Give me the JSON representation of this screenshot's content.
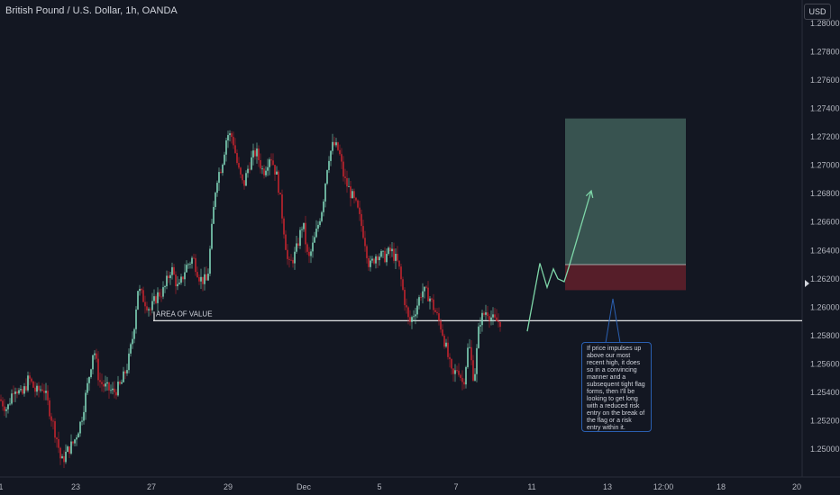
{
  "header": {
    "title": "British Pound / U.S. Dollar, 1h, OANDA",
    "currency_button": "USD"
  },
  "annotations": {
    "area_of_value": "AREA OF VALUE",
    "callout": "If price impulses up above our most recent high, it does so in a convincing manner and a subsequent tight flag forms, then I'll be looking to get long with a reduced risk entry on the break of the flag or a risk entry within it."
  },
  "colors": {
    "background": "#131722",
    "bull": "#7fd3b8",
    "bear": "#c0242e",
    "target_zone": "#3d5a55",
    "stop_zone": "#5a1f2a",
    "projection": "#7ed6a8",
    "line": "#ffffff"
  },
  "chart_data": {
    "type": "candlestick",
    "title": "British Pound / U.S. Dollar, 1h, OANDA",
    "ylim": [
      1.2485,
      1.2808
    ],
    "y_ticks": [
      "1.28000",
      "1.27800",
      "1.27600",
      "1.27400",
      "1.27200",
      "1.27000",
      "1.26800",
      "1.26600",
      "1.26400",
      "1.26200",
      "1.26000",
      "1.25800",
      "1.25600",
      "1.25400",
      "1.25200",
      "1.25000"
    ],
    "x_ticks": [
      "1",
      "23",
      "27",
      "29",
      "Dec",
      "5",
      "7",
      "11",
      "13",
      "12:00",
      "18",
      "20"
    ],
    "price_path": [
      [
        0,
        1.2535
      ],
      [
        8,
        1.2528
      ],
      [
        16,
        1.2545
      ],
      [
        24,
        1.2537
      ],
      [
        32,
        1.255
      ],
      [
        40,
        1.254
      ],
      [
        48,
        1.2544
      ],
      [
        56,
        1.2525
      ],
      [
        64,
        1.2505
      ],
      [
        68,
        1.249
      ],
      [
        74,
        1.2498
      ],
      [
        82,
        1.2505
      ],
      [
        90,
        1.252
      ],
      [
        98,
        1.2548
      ],
      [
        104,
        1.2572
      ],
      [
        110,
        1.2548
      ],
      [
        118,
        1.2543
      ],
      [
        126,
        1.254
      ],
      [
        134,
        1.2545
      ],
      [
        142,
        1.256
      ],
      [
        148,
        1.2582
      ],
      [
        153,
        1.2613
      ],
      [
        160,
        1.2605
      ],
      [
        167,
        1.2598
      ],
      [
        174,
        1.2608
      ],
      [
        182,
        1.2612
      ],
      [
        190,
        1.2628
      ],
      [
        198,
        1.2612
      ],
      [
        206,
        1.2628
      ],
      [
        214,
        1.2635
      ],
      [
        222,
        1.262
      ],
      [
        230,
        1.2618
      ],
      [
        236,
        1.2662
      ],
      [
        240,
        1.269
      ],
      [
        246,
        1.27
      ],
      [
        252,
        1.2722
      ],
      [
        258,
        1.272
      ],
      [
        264,
        1.2698
      ],
      [
        270,
        1.2685
      ],
      [
        276,
        1.27
      ],
      [
        284,
        1.271
      ],
      [
        292,
        1.2695
      ],
      [
        300,
        1.2708
      ],
      [
        308,
        1.269
      ],
      [
        314,
        1.266
      ],
      [
        320,
        1.2628
      ],
      [
        328,
        1.2638
      ],
      [
        336,
        1.266
      ],
      [
        342,
        1.2632
      ],
      [
        350,
        1.265
      ],
      [
        358,
        1.2672
      ],
      [
        364,
        1.2705
      ],
      [
        370,
        1.2715
      ],
      [
        376,
        1.271
      ],
      [
        382,
        1.269
      ],
      [
        388,
        1.2682
      ],
      [
        396,
        1.267
      ],
      [
        404,
        1.265
      ],
      [
        410,
        1.2628
      ],
      [
        418,
        1.2638
      ],
      [
        426,
        1.2635
      ],
      [
        434,
        1.264
      ],
      [
        442,
        1.263
      ],
      [
        448,
        1.2608
      ],
      [
        454,
        1.2588
      ],
      [
        462,
        1.26
      ],
      [
        468,
        1.2612
      ],
      [
        476,
        1.2608
      ],
      [
        484,
        1.2595
      ],
      [
        490,
        1.2585
      ],
      [
        496,
        1.2568
      ],
      [
        502,
        1.255
      ],
      [
        508,
        1.2558
      ],
      [
        514,
        1.2545
      ],
      [
        520,
        1.2575
      ],
      [
        526,
        1.2548
      ],
      [
        532,
        1.259
      ],
      [
        540,
        1.2598
      ],
      [
        548,
        1.259
      ],
      [
        556,
        1.259
      ]
    ],
    "area_of_value_level": 1.25905,
    "trade_setup": {
      "target_top": 1.2733,
      "entry": 1.263,
      "stop": 1.2612
    },
    "projection_path": [
      [
        585,
        1.2583
      ],
      [
        599,
        1.2631
      ],
      [
        607,
        1.2614
      ],
      [
        614,
        1.2627
      ],
      [
        619,
        1.262
      ],
      [
        626,
        1.2618
      ],
      [
        632,
        1.263
      ],
      [
        656,
        1.2682
      ]
    ]
  }
}
